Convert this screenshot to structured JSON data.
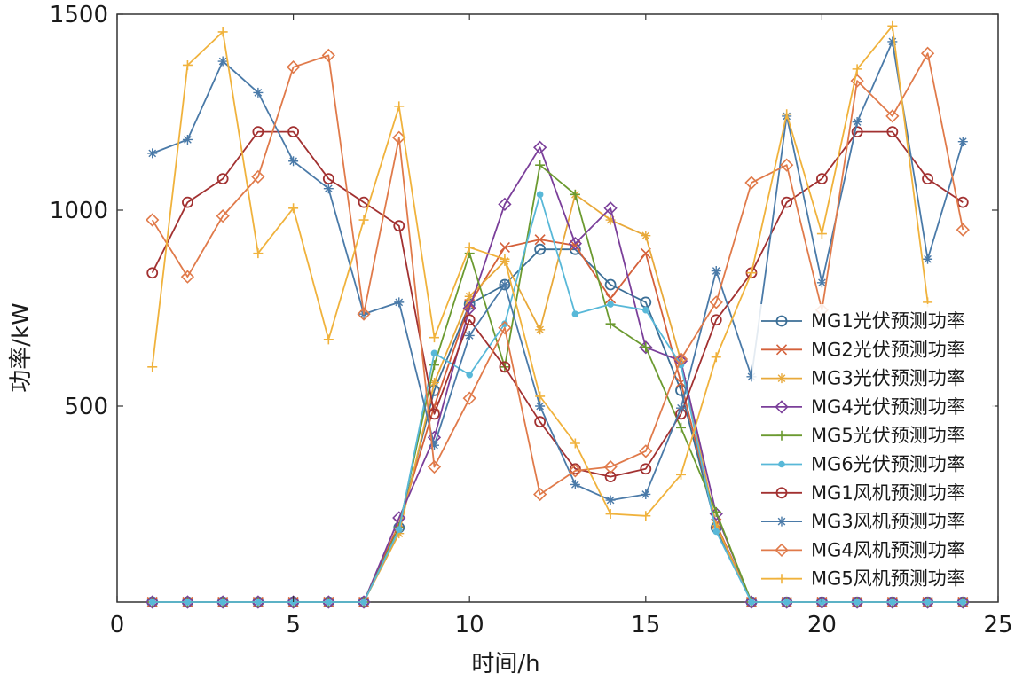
{
  "chart_data": {
    "type": "line",
    "title": "",
    "xlabel": "时间/h",
    "ylabel": "功率/kW",
    "xlim": [
      0,
      25
    ],
    "ylim": [
      0,
      1500
    ],
    "xticks": [
      "0",
      "5",
      "10",
      "15",
      "20",
      "25"
    ],
    "yticks": [
      "500",
      "1000",
      "1500"
    ],
    "legend_position": "right",
    "x": [
      1,
      2,
      3,
      4,
      5,
      6,
      7,
      8,
      9,
      10,
      11,
      12,
      13,
      14,
      15,
      16,
      17,
      18,
      19,
      20,
      21,
      22,
      23,
      24
    ],
    "series": [
      {
        "name": "MG1光伏预测功率",
        "color": "#3b6e96",
        "marker": "circle",
        "values": [
          0,
          0,
          0,
          0,
          0,
          0,
          0,
          190,
          540,
          760,
          810,
          900,
          900,
          810,
          765,
          540,
          190,
          0,
          0,
          0,
          0,
          0,
          0,
          0
        ]
      },
      {
        "name": "MG2光伏预测功率",
        "color": "#d4603a",
        "marker": "x",
        "values": [
          0,
          0,
          0,
          0,
          0,
          0,
          0,
          200,
          500,
          760,
          905,
          925,
          910,
          775,
          890,
          560,
          200,
          0,
          0,
          0,
          0,
          0,
          0,
          0
        ]
      },
      {
        "name": "MG3光伏预测功率",
        "color": "#e8a93a",
        "marker": "asterisk",
        "values": [
          0,
          0,
          0,
          0,
          0,
          0,
          0,
          175,
          560,
          780,
          870,
          695,
          1040,
          975,
          935,
          615,
          195,
          0,
          0,
          0,
          0,
          0,
          0,
          0
        ]
      },
      {
        "name": "MG4光伏预测功率",
        "color": "#7b3f9a",
        "marker": "diamond",
        "values": [
          0,
          0,
          0,
          0,
          0,
          0,
          0,
          215,
          420,
          750,
          1015,
          1160,
          915,
          1005,
          650,
          615,
          225,
          0,
          0,
          0,
          0,
          0,
          0,
          0
        ]
      },
      {
        "name": "MG5光伏预测功率",
        "color": "#6b9a30",
        "marker": "plus",
        "values": [
          0,
          0,
          0,
          0,
          0,
          0,
          0,
          190,
          605,
          890,
          600,
          1115,
          1040,
          710,
          650,
          445,
          230,
          0,
          0,
          0,
          0,
          0,
          0,
          0
        ]
      },
      {
        "name": "MG6光伏预测功率",
        "color": "#58b8d8",
        "marker": "dot",
        "values": [
          0,
          0,
          0,
          0,
          0,
          0,
          0,
          185,
          635,
          580,
          710,
          1040,
          735,
          760,
          745,
          605,
          180,
          0,
          0,
          0,
          0,
          0,
          0,
          0
        ]
      },
      {
        "name": "MG1风机预测功率",
        "color": "#a23131",
        "marker": "circle",
        "values": [
          840,
          1020,
          1080,
          1200,
          1200,
          1080,
          1020,
          960,
          480,
          720,
          600,
          460,
          340,
          320,
          340,
          480,
          720,
          840,
          1020,
          1080,
          1200,
          1200,
          1080,
          1020
        ]
      },
      {
        "name": "MG3风机预测功率",
        "color": "#4a7aa8",
        "marker": "asterisk",
        "values": [
          1145,
          1180,
          1380,
          1300,
          1125,
          1055,
          735,
          765,
          400,
          680,
          810,
          500,
          300,
          260,
          275,
          495,
          845,
          575,
          1240,
          815,
          1225,
          1430,
          875,
          1175
        ]
      },
      {
        "name": "MG4风机预测功率",
        "color": "#e07a4a",
        "marker": "diamond",
        "values": [
          975,
          830,
          985,
          1085,
          1365,
          1395,
          735,
          1185,
          345,
          520,
          700,
          275,
          335,
          345,
          385,
          620,
          765,
          1070,
          1115,
          745,
          1330,
          1240,
          1400,
          950
        ]
      },
      {
        "name": "MG5风机预测功率",
        "color": "#f0b23c",
        "marker": "plus",
        "values": [
          600,
          1370,
          1455,
          890,
          1005,
          670,
          975,
          1265,
          675,
          905,
          875,
          525,
          405,
          225,
          220,
          325,
          625,
          840,
          1245,
          940,
          1360,
          1470,
          765,
          null
        ]
      }
    ]
  }
}
